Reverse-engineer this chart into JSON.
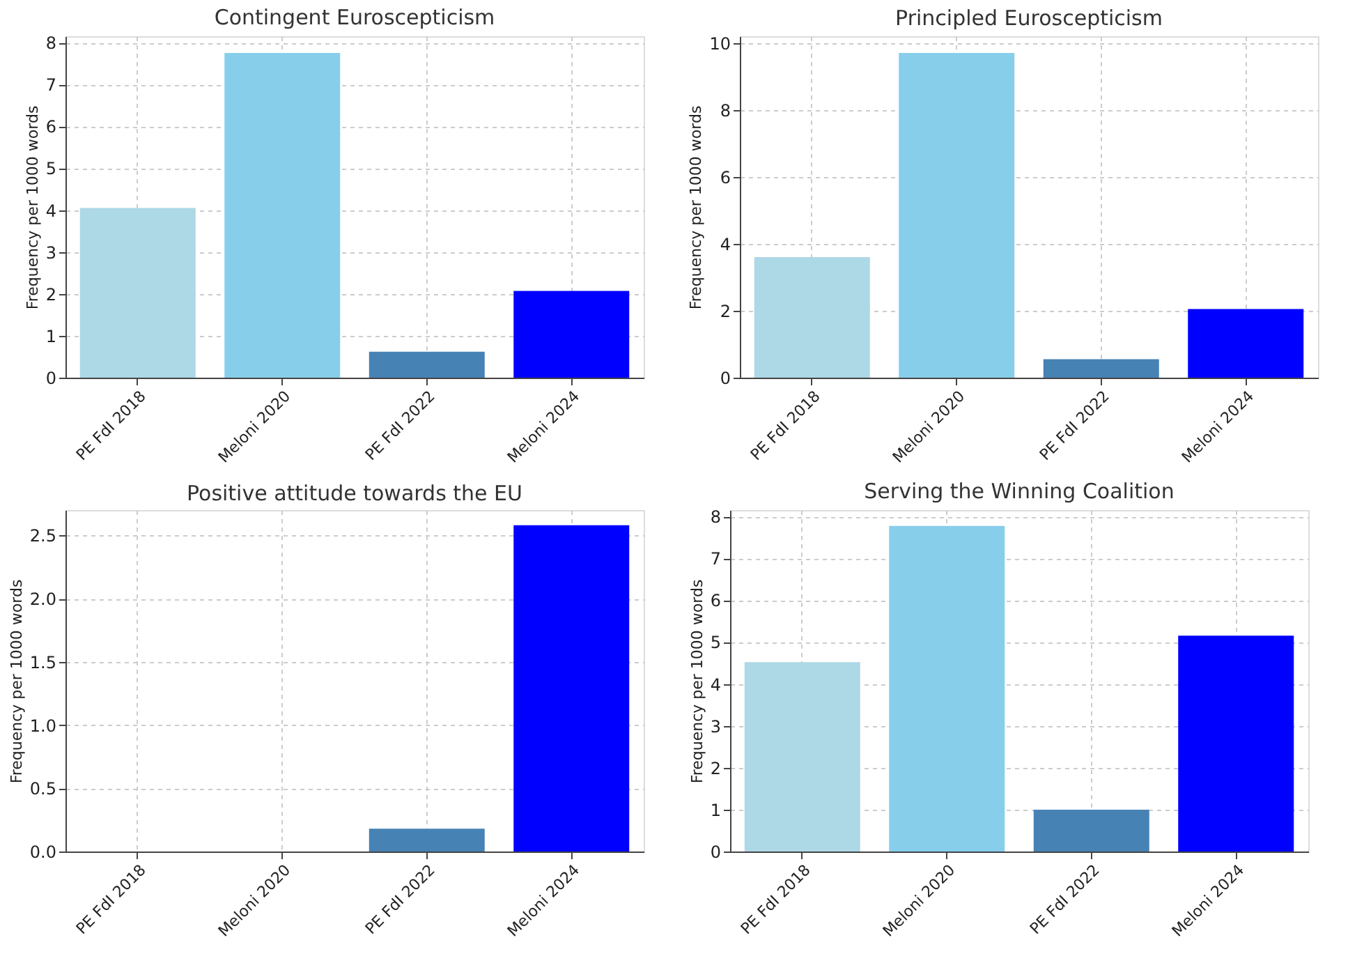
{
  "chart_data": [
    {
      "type": "bar",
      "title": "Contingent Euroscepticism",
      "ylabel": "Frequency per 1000 words",
      "categories": [
        "PE FdI 2018",
        "Meloni 2020",
        "PE FdI 2022",
        "Meloni 2024"
      ],
      "values": [
        4.05,
        7.75,
        0.62,
        2.07
      ],
      "colors": [
        "#add8e6",
        "#87ceeb",
        "#4682b4",
        "#0000ff"
      ],
      "ylim": [
        0,
        8.15
      ],
      "yticks": [
        0,
        1,
        2,
        3,
        4,
        5,
        6,
        7,
        8
      ],
      "grid": true
    },
    {
      "type": "bar",
      "title": "Principled Euroscepticism",
      "ylabel": "Frequency per 1000 words",
      "categories": [
        "PE FdI 2018",
        "Meloni 2020",
        "PE FdI 2022",
        "Meloni 2024"
      ],
      "values": [
        3.6,
        9.7,
        0.55,
        2.05
      ],
      "colors": [
        "#add8e6",
        "#87ceeb",
        "#4682b4",
        "#0000ff"
      ],
      "ylim": [
        0,
        10.2
      ],
      "yticks": [
        0,
        2,
        4,
        6,
        8,
        10
      ],
      "grid": true
    },
    {
      "type": "bar",
      "title": "Positive attitude towards the EU",
      "ylabel": "Frequency per 1000 words",
      "categories": [
        "PE FdI 2018",
        "Meloni 2020",
        "PE FdI 2022",
        "Meloni 2024"
      ],
      "values": [
        0,
        0,
        0.18,
        2.58
      ],
      "colors": [
        "#add8e6",
        "#87ceeb",
        "#4682b4",
        "#0000ff"
      ],
      "ylim": [
        0,
        2.7
      ],
      "yticks": [
        {
          "value": 0,
          "label": "0.0"
        },
        {
          "value": 0.5,
          "label": "0.5"
        },
        {
          "value": 1,
          "label": "1.0"
        },
        {
          "value": 1.5,
          "label": "1.5"
        },
        {
          "value": 2,
          "label": "2.0"
        },
        {
          "value": 2.5,
          "label": "2.5"
        }
      ],
      "grid": true
    },
    {
      "type": "bar",
      "title": "Serving the Winning Coalition",
      "ylabel": "Frequency per 1000 words",
      "categories": [
        "PE FdI 2018",
        "Meloni 2020",
        "PE FdI 2022",
        "Meloni 2024"
      ],
      "values": [
        4.52,
        7.77,
        1.0,
        5.15
      ],
      "colors": [
        "#add8e6",
        "#87ceeb",
        "#4682b4",
        "#0000ff"
      ],
      "ylim": [
        0,
        8.15
      ],
      "yticks": [
        0,
        1,
        2,
        3,
        4,
        5,
        6,
        7,
        8
      ],
      "grid": true
    }
  ]
}
